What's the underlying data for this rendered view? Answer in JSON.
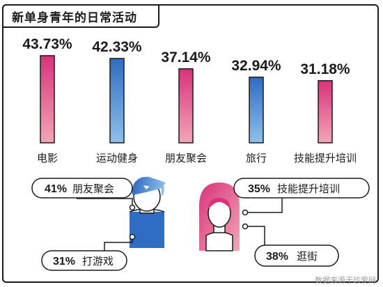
{
  "title": "新单身青年的日常活动",
  "source": "数据来源于珍爱网",
  "colors": {
    "pink_top": "#d8337a",
    "pink_bottom": "#f2a6b6",
    "blue_top": "#2f6cc3",
    "blue_bottom": "#8ec0ea",
    "ink": "#1a1a1a"
  },
  "chart_data": {
    "type": "bar",
    "categories": [
      "电影",
      "运动健身",
      "朋友聚会",
      "旅行",
      "技能提升培训"
    ],
    "values": [
      43.73,
      42.33,
      37.14,
      32.94,
      31.18
    ],
    "value_labels": [
      "43.73%",
      "42.33%",
      "37.14%",
      "32.94%",
      "31.18%"
    ],
    "bar_colors": [
      "pink",
      "blue",
      "pink",
      "blue",
      "pink"
    ],
    "ylim": [
      0,
      50
    ]
  },
  "callouts": {
    "male": [
      {
        "pct": "41%",
        "label": "朋友聚会"
      },
      {
        "pct": "31%",
        "label": "打游戏"
      }
    ],
    "female": [
      {
        "pct": "35%",
        "label": "技能提升培训"
      },
      {
        "pct": "38%",
        "label": "逛街"
      }
    ]
  }
}
